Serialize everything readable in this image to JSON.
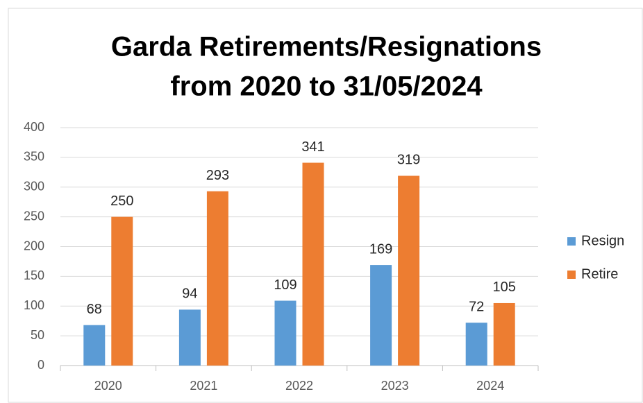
{
  "chart_data": {
    "type": "bar",
    "title": [
      "Garda Retirements/Resignations",
      "from 2020 to 31/05/2024"
    ],
    "categories": [
      "2020",
      "2021",
      "2022",
      "2023",
      "2024"
    ],
    "series": [
      {
        "name": "Resign",
        "color": "#5b9bd5",
        "values": [
          68,
          94,
          109,
          169,
          72
        ]
      },
      {
        "name": "Retire",
        "color": "#ed7d31",
        "values": [
          250,
          293,
          341,
          319,
          105
        ]
      }
    ],
    "ylim": [
      0,
      400
    ],
    "yticks": [
      0,
      50,
      100,
      150,
      200,
      250,
      300,
      350,
      400
    ],
    "grid": true,
    "data_labels": true,
    "legend": "right"
  }
}
